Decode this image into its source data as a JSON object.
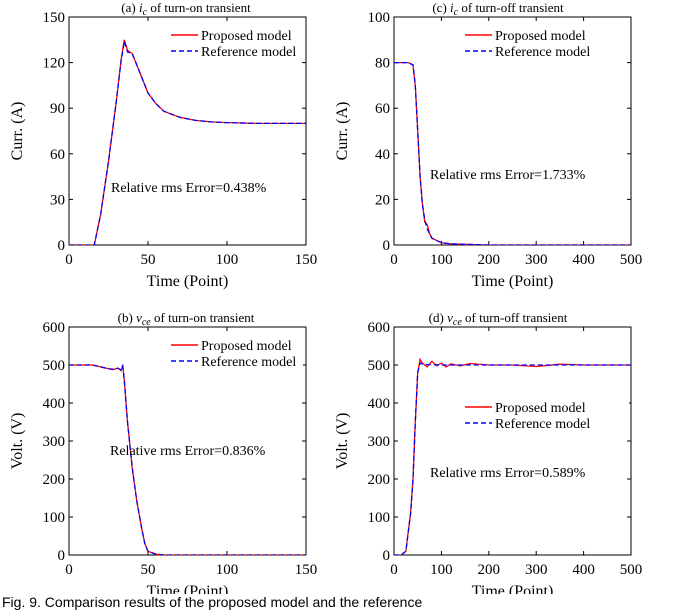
{
  "caption": "Fig. 9. Comparison results of the proposed model and the reference",
  "colors": {
    "proposed": "#ff0000",
    "reference": "#0000ff"
  },
  "chart_data": [
    {
      "type": "line",
      "title_prefix": "(a) ",
      "title_var": "i",
      "title_sub": "c",
      "title_suffix": " of turn-on transient",
      "xlabel": "Time (Point)",
      "ylabel": "Curr. (A)",
      "xlim": [
        0,
        150
      ],
      "ylim": [
        0,
        150
      ],
      "xticks": [
        0,
        50,
        100,
        150
      ],
      "yticks": [
        0,
        30,
        60,
        90,
        120,
        150
      ],
      "legend_position": "top-right",
      "annotation": "Relative rms Error=0.438%",
      "series": [
        {
          "name": "Proposed model",
          "style": "solid",
          "x": [
            0,
            16,
            20,
            25,
            30,
            33,
            35,
            37,
            40,
            45,
            50,
            55,
            60,
            70,
            80,
            90,
            100,
            120,
            150
          ],
          "y": [
            0,
            0,
            20,
            55,
            95,
            122,
            135,
            128,
            126,
            113,
            100,
            93,
            88,
            84,
            82,
            81,
            80.5,
            80,
            80
          ]
        },
        {
          "name": "Reference model",
          "style": "dashed",
          "x": [
            0,
            16,
            20,
            25,
            30,
            33,
            35,
            37,
            40,
            45,
            50,
            55,
            60,
            70,
            80,
            90,
            100,
            120,
            150
          ],
          "y": [
            0,
            0,
            20,
            55,
            95,
            121,
            134,
            127,
            126,
            113,
            100,
            93,
            88,
            84,
            82,
            81,
            80.5,
            80,
            80
          ]
        }
      ]
    },
    {
      "type": "line",
      "title_prefix": "(c) ",
      "title_var": "i",
      "title_sub": "c",
      "title_suffix": " of turn-off transient",
      "xlabel": "Time (Point)",
      "ylabel": "Curr. (A)",
      "xlim": [
        0,
        500
      ],
      "ylim": [
        0,
        100
      ],
      "xticks": [
        0,
        100,
        200,
        300,
        400,
        500
      ],
      "yticks": [
        0,
        20,
        40,
        60,
        80,
        100
      ],
      "legend_position": "top-right",
      "annotation": "Relative rms Error=1.733%",
      "series": [
        {
          "name": "Proposed model",
          "style": "solid",
          "x": [
            0,
            30,
            40,
            45,
            50,
            55,
            60,
            65,
            70,
            75,
            80,
            90,
            100,
            120,
            150,
            200,
            300,
            500
          ],
          "y": [
            80,
            80,
            79,
            70,
            50,
            30,
            18,
            10,
            9,
            5,
            3,
            2,
            1,
            0.5,
            0.3,
            0,
            0,
            0
          ]
        },
        {
          "name": "Reference model",
          "style": "dashed",
          "x": [
            0,
            30,
            40,
            45,
            50,
            55,
            60,
            65,
            70,
            75,
            80,
            90,
            100,
            120,
            150,
            200,
            300,
            500
          ],
          "y": [
            80,
            80,
            79,
            70,
            50,
            30,
            18,
            11,
            7,
            5,
            3,
            2,
            1,
            0.5,
            0.3,
            0,
            0,
            0
          ]
        }
      ]
    },
    {
      "type": "line",
      "title_prefix": "(b) ",
      "title_var": "v",
      "title_sub": "ce",
      "title_suffix": " of turn-on transient",
      "xlabel": "Time (Point)",
      "ylabel": "Volt. (V)",
      "xlim": [
        0,
        150
      ],
      "ylim": [
        0,
        600
      ],
      "xticks": [
        0,
        50,
        100,
        150
      ],
      "yticks": [
        0,
        100,
        200,
        300,
        400,
        500,
        600
      ],
      "legend_position": "top-right",
      "annotation": "Relative rms Error=0.836%",
      "series": [
        {
          "name": "Proposed model",
          "style": "solid",
          "x": [
            0,
            15,
            20,
            25,
            28,
            31,
            33,
            34,
            35,
            37,
            40,
            43,
            46,
            48,
            50,
            55,
            60,
            70,
            100,
            150
          ],
          "y": [
            500,
            500,
            495,
            490,
            488,
            492,
            485,
            500,
            460,
            350,
            230,
            140,
            70,
            30,
            10,
            2,
            0,
            0,
            0,
            0
          ]
        },
        {
          "name": "Reference model",
          "style": "dashed",
          "x": [
            0,
            15,
            20,
            25,
            28,
            31,
            33,
            34,
            35,
            37,
            40,
            43,
            46,
            48,
            50,
            55,
            60,
            70,
            100,
            150
          ],
          "y": [
            500,
            500,
            495,
            490,
            489,
            491,
            487,
            497,
            460,
            350,
            230,
            140,
            70,
            30,
            10,
            2,
            0,
            0,
            0,
            0
          ]
        }
      ]
    },
    {
      "type": "line",
      "title_prefix": "(d) ",
      "title_var": "v",
      "title_sub": "ce",
      "title_suffix": " of turn-off transient",
      "xlabel": "Time (Point)",
      "ylabel": "Volt. (V)",
      "xlim": [
        0,
        500
      ],
      "ylim": [
        0,
        600
      ],
      "xticks": [
        0,
        100,
        200,
        300,
        400,
        500
      ],
      "yticks": [
        0,
        100,
        200,
        300,
        400,
        500,
        600
      ],
      "legend_position": "right",
      "annotation": "Relative rms Error=0.589%",
      "series": [
        {
          "name": "Proposed model",
          "style": "solid",
          "x": [
            0,
            15,
            25,
            30,
            35,
            40,
            45,
            50,
            55,
            60,
            70,
            80,
            90,
            100,
            110,
            120,
            140,
            160,
            200,
            250,
            300,
            350,
            400,
            500
          ],
          "y": [
            0,
            0,
            10,
            60,
            110,
            200,
            350,
            480,
            515,
            505,
            495,
            510,
            498,
            505,
            495,
            503,
            498,
            504,
            500,
            500,
            496,
            502,
            500,
            500
          ]
        },
        {
          "name": "Reference model",
          "style": "dashed",
          "x": [
            0,
            15,
            25,
            30,
            35,
            40,
            45,
            50,
            55,
            60,
            70,
            100,
            150,
            200,
            300,
            400,
            500
          ],
          "y": [
            0,
            0,
            10,
            60,
            110,
            200,
            350,
            480,
            505,
            503,
            501,
            500,
            500,
            500,
            500,
            500,
            500
          ]
        }
      ]
    }
  ]
}
